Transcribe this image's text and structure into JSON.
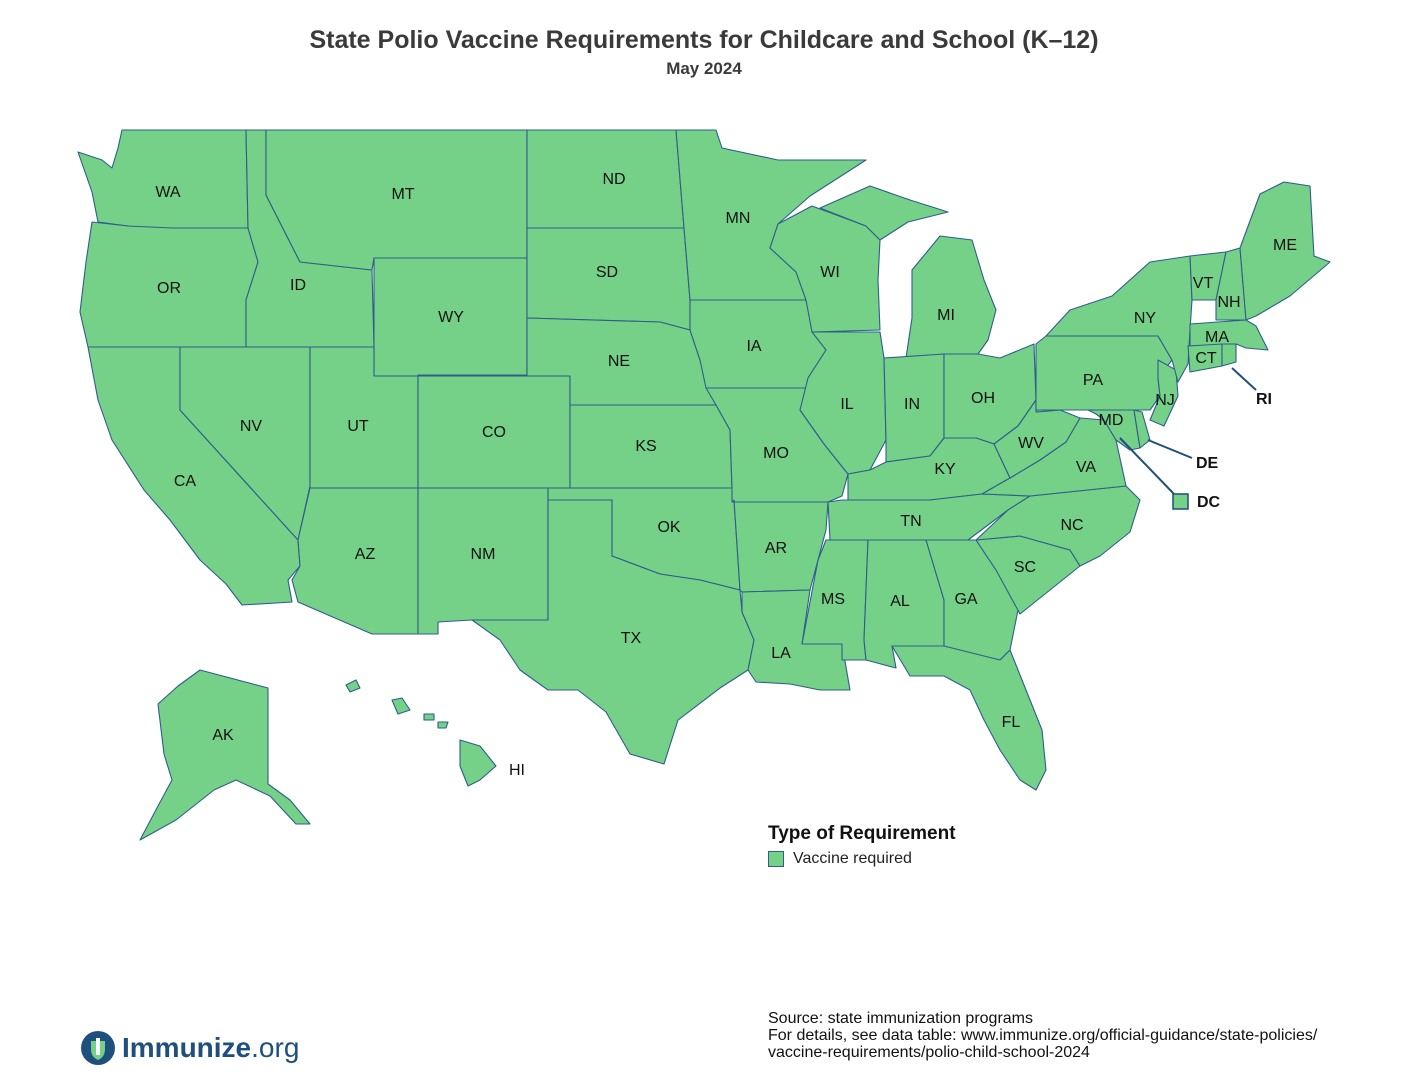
{
  "title": "State Polio Vaccine Requirements for Childcare and School (K–12)",
  "subtitle": "May 2024",
  "colors": {
    "vaccine_required": "#76d188",
    "border": "#2d5e8c",
    "callout": "#1f4f7d"
  },
  "states": {
    "WA": "WA",
    "OR": "OR",
    "CA": "CA",
    "ID": "ID",
    "NV": "NV",
    "MT": "MT",
    "WY": "WY",
    "UT": "UT",
    "AZ": "AZ",
    "CO": "CO",
    "NM": "NM",
    "ND": "ND",
    "SD": "SD",
    "NE": "NE",
    "KS": "KS",
    "OK": "OK",
    "TX": "TX",
    "MN": "MN",
    "IA": "IA",
    "MO": "MO",
    "AR": "AR",
    "LA": "LA",
    "WI": "WI",
    "IL": "IL",
    "MI": "MI",
    "IN": "IN",
    "OH": "OH",
    "KY": "KY",
    "TN": "TN",
    "MS": "MS",
    "AL": "AL",
    "GA": "GA",
    "FL": "FL",
    "SC": "SC",
    "NC": "NC",
    "VA": "VA",
    "WV": "WV",
    "PA": "PA",
    "NY": "NY",
    "VT": "VT",
    "NH": "NH",
    "ME": "ME",
    "MA": "MA",
    "CT": "CT",
    "RI": "RI",
    "NJ": "NJ",
    "DE": "DE",
    "MD": "MD",
    "DC": "DC",
    "AK": "AK",
    "HI": "HI"
  },
  "legend": {
    "title": "Type of Requirement",
    "items": [
      {
        "label": "Vaccine required",
        "color": "#76d188"
      }
    ]
  },
  "source": {
    "line1": "Source: state immunization programs",
    "line2": "For details, see data table: www.immunize.org/official-guidance/state-policies/",
    "line3": "vaccine-requirements/polio-child-school-2024"
  },
  "logo": {
    "name": "Immunize",
    "suffix": ".org"
  }
}
